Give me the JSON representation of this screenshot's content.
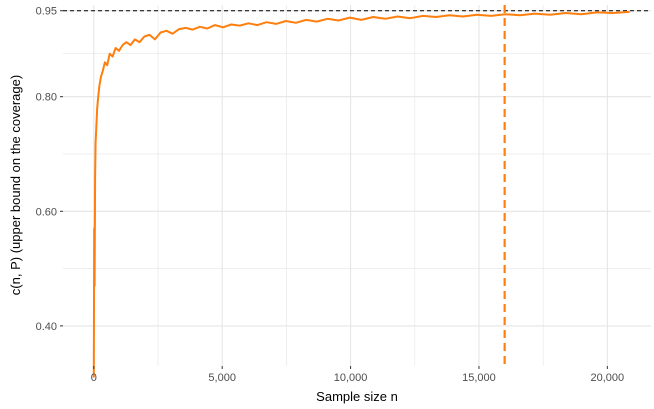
{
  "chart_data": {
    "type": "line",
    "title": "",
    "xlabel": "Sample size n",
    "ylabel": "c(n, P) (upper bound on the coverage)",
    "xlim": [
      -1200,
      21700
    ],
    "ylim": [
      0.33,
      0.96
    ],
    "x_ticks": [
      0,
      5000,
      10000,
      15000,
      20000
    ],
    "x_tick_labels": [
      "0",
      "5,000",
      "10,000",
      "15,000",
      "20,000"
    ],
    "y_ticks": [
      0.4,
      0.6,
      0.8,
      0.95
    ],
    "y_tick_labels": [
      "0.40",
      "0.60",
      "0.80",
      "0.95"
    ],
    "y_minor_ticks": [
      0.5,
      0.7,
      0.875
    ],
    "x_minor_ticks": [
      2500,
      7500,
      12500,
      17500
    ],
    "grid": true,
    "colors": {
      "line": "#ff7f0e",
      "reference": "#000000",
      "grid": "#e5e5e5"
    },
    "reference_lines": [
      {
        "orientation": "horizontal",
        "value": 0.95,
        "style": "dashed",
        "color": "#000000"
      },
      {
        "orientation": "vertical",
        "value": 16000,
        "style": "dashed",
        "color": "#ff7f0e"
      }
    ],
    "series": [
      {
        "color": "#ff7f0e",
        "x": [
          0,
          15,
          30,
          50,
          70,
          100,
          130,
          170,
          220,
          280,
          350,
          430,
          520,
          620,
          730,
          850,
          980,
          1120,
          1270,
          1430,
          1600,
          1780,
          1970,
          2170,
          2380,
          2600,
          2830,
          3070,
          3320,
          3580,
          3850,
          4130,
          4420,
          4720,
          5030,
          5350,
          5680,
          6020,
          6370,
          6730,
          7100,
          7480,
          7870,
          8270,
          8680,
          9100,
          9530,
          9970,
          10420,
          10880,
          11350,
          11830,
          12320,
          12820,
          13330,
          13850,
          14380,
          14920,
          15470,
          16030,
          16600,
          17180,
          17770,
          18370,
          18980,
          19600,
          20230,
          20870
        ],
        "values": [
          0.31,
          0.57,
          0.47,
          0.66,
          0.72,
          0.75,
          0.78,
          0.8,
          0.82,
          0.835,
          0.845,
          0.86,
          0.855,
          0.875,
          0.87,
          0.885,
          0.88,
          0.89,
          0.895,
          0.89,
          0.9,
          0.895,
          0.905,
          0.908,
          0.9,
          0.912,
          0.915,
          0.91,
          0.918,
          0.92,
          0.917,
          0.922,
          0.919,
          0.925,
          0.921,
          0.926,
          0.924,
          0.928,
          0.925,
          0.93,
          0.927,
          0.932,
          0.929,
          0.934,
          0.931,
          0.936,
          0.933,
          0.938,
          0.934,
          0.939,
          0.936,
          0.94,
          0.937,
          0.941,
          0.939,
          0.942,
          0.94,
          0.943,
          0.941,
          0.944,
          0.942,
          0.945,
          0.943,
          0.946,
          0.944,
          0.947,
          0.946,
          0.948
        ]
      }
    ]
  }
}
